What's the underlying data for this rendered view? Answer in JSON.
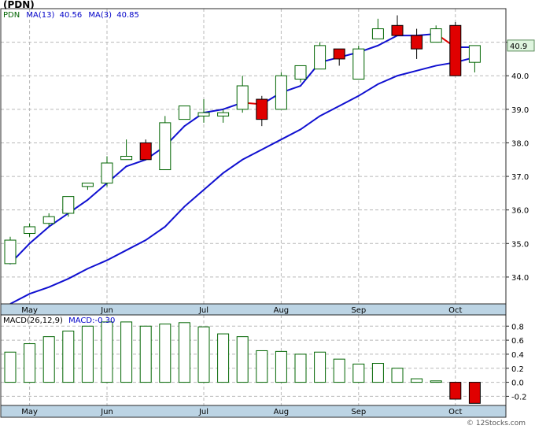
{
  "title": "(PDN)",
  "footer": "© 12Stocks.com",
  "colors": {
    "frame": "#2a2a2a",
    "grid": "#b8b8b8",
    "axis_band": "#bcd4e4",
    "up_candle": "#006400",
    "down_candle": "#e00000",
    "ma_line": "#1010d0",
    "ma_line_down": "#e00000",
    "macd_bar": "#006400",
    "macd_neg_fill": "#e00000",
    "price_badge": "#dff5df",
    "caption": "#0000c8"
  },
  "chart_data": [
    {
      "type": "candlestick",
      "name": "price",
      "legend": {
        "symbol": "PDN",
        "ma13_label": "MA(13)",
        "ma13_value": "40.56",
        "ma3_label": "MA(3)",
        "ma3_value": "40.85"
      },
      "last_price": "40.9",
      "ylim": [
        33.2,
        42.0
      ],
      "yticks": [
        34.0,
        35.0,
        36.0,
        37.0,
        38.0,
        39.0,
        40.0,
        41.0
      ],
      "ytick_labels": [
        "34.0",
        "35.0",
        "36.0",
        "37.0",
        "38.0",
        "39.0",
        "40.0",
        "41.0"
      ],
      "x_count": 25,
      "month_labels": [
        {
          "label": "May",
          "index": 1
        },
        {
          "label": "Jun",
          "index": 5
        },
        {
          "label": "Jul",
          "index": 10
        },
        {
          "label": "Aug",
          "index": 14
        },
        {
          "label": "Sep",
          "index": 18
        },
        {
          "label": "Oct",
          "index": 23
        }
      ],
      "candles": [
        {
          "o": 34.4,
          "h": 35.2,
          "l": 34.4,
          "c": 35.1
        },
        {
          "o": 35.3,
          "h": 35.6,
          "l": 35.2,
          "c": 35.5
        },
        {
          "o": 35.6,
          "h": 35.9,
          "l": 35.5,
          "c": 35.8
        },
        {
          "o": 35.9,
          "h": 36.4,
          "l": 35.8,
          "c": 36.4
        },
        {
          "o": 36.7,
          "h": 36.8,
          "l": 36.6,
          "c": 36.8
        },
        {
          "o": 36.8,
          "h": 37.6,
          "l": 36.7,
          "c": 37.4
        },
        {
          "o": 37.5,
          "h": 38.1,
          "l": 37.5,
          "c": 37.6
        },
        {
          "o": 38.0,
          "h": 38.1,
          "l": 37.5,
          "c": 37.5
        },
        {
          "o": 37.2,
          "h": 38.8,
          "l": 37.2,
          "c": 38.6
        },
        {
          "o": 38.7,
          "h": 39.1,
          "l": 38.7,
          "c": 39.1
        },
        {
          "o": 38.8,
          "h": 39.3,
          "l": 38.6,
          "c": 38.9
        },
        {
          "o": 38.8,
          "h": 39.0,
          "l": 38.6,
          "c": 38.9
        },
        {
          "o": 39.0,
          "h": 40.0,
          "l": 38.9,
          "c": 39.7
        },
        {
          "o": 39.3,
          "h": 39.4,
          "l": 38.5,
          "c": 38.7
        },
        {
          "o": 39.0,
          "h": 40.1,
          "l": 39.0,
          "c": 40.0
        },
        {
          "o": 39.9,
          "h": 40.3,
          "l": 39.8,
          "c": 40.3
        },
        {
          "o": 40.2,
          "h": 41.0,
          "l": 40.2,
          "c": 40.9
        },
        {
          "o": 40.8,
          "h": 40.8,
          "l": 40.3,
          "c": 40.5
        },
        {
          "o": 39.9,
          "h": 40.9,
          "l": 39.9,
          "c": 40.8
        },
        {
          "o": 41.1,
          "h": 41.7,
          "l": 41.1,
          "c": 41.4
        },
        {
          "o": 41.5,
          "h": 41.8,
          "l": 41.2,
          "c": 41.2
        },
        {
          "o": 41.2,
          "h": 41.4,
          "l": 40.5,
          "c": 40.8
        },
        {
          "o": 41.0,
          "h": 41.5,
          "l": 41.0,
          "c": 41.4
        },
        {
          "o": 41.5,
          "h": 41.6,
          "l": 40.0,
          "c": 40.0
        },
        {
          "o": 40.4,
          "h": 40.9,
          "l": 40.1,
          "c": 40.9
        }
      ],
      "ma13": [
        33.2,
        33.5,
        33.7,
        33.95,
        34.25,
        34.5,
        34.8,
        35.1,
        35.5,
        36.1,
        36.6,
        37.1,
        37.5,
        37.8,
        38.1,
        38.4,
        38.8,
        39.1,
        39.4,
        39.75,
        40.0,
        40.15,
        40.3,
        40.4,
        40.55
      ],
      "ma3": [
        34.4,
        35.0,
        35.5,
        35.9,
        36.3,
        36.8,
        37.3,
        37.5,
        37.9,
        38.5,
        38.9,
        39.0,
        39.2,
        39.15,
        39.5,
        39.7,
        40.4,
        40.55,
        40.7,
        40.9,
        41.2,
        41.2,
        41.25,
        40.85,
        40.85
      ],
      "ma3_down_segments": [
        12,
        22
      ]
    },
    {
      "type": "bar",
      "name": "MACD",
      "legend": {
        "label": "MACD(26,12,9)",
        "value_label": "MACD:-0.30"
      },
      "ylim": [
        -0.33,
        0.96
      ],
      "yticks": [
        -0.2,
        0.0,
        0.2,
        0.4,
        0.6,
        0.8
      ],
      "ytick_labels": [
        "-0.2",
        "0.0",
        "0.2",
        "0.4",
        "0.6",
        "0.8"
      ],
      "values": [
        0.43,
        0.55,
        0.65,
        0.73,
        0.8,
        0.86,
        0.86,
        0.8,
        0.83,
        0.85,
        0.79,
        0.69,
        0.65,
        0.45,
        0.44,
        0.4,
        0.43,
        0.33,
        0.26,
        0.27,
        0.2,
        0.05,
        0.02,
        -0.24,
        -0.3
      ],
      "month_labels": [
        {
          "label": "May",
          "index": 1
        },
        {
          "label": "Jun",
          "index": 5
        },
        {
          "label": "Jul",
          "index": 10
        },
        {
          "label": "Aug",
          "index": 14
        },
        {
          "label": "Sep",
          "index": 18
        },
        {
          "label": "Oct",
          "index": 23
        }
      ]
    }
  ]
}
